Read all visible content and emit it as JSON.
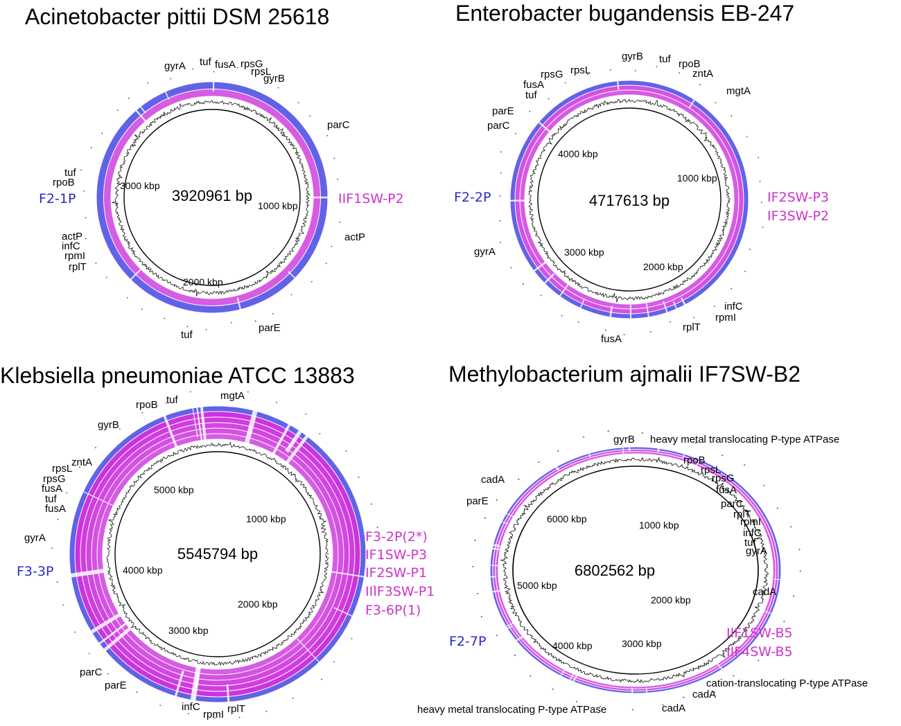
{
  "colors": {
    "reference_ring": "#5a5ae8",
    "comparison_ring": "#cc33dd",
    "reference_label": "#2a2ac8",
    "comparison_label": "#cc33cc"
  },
  "panels": [
    {
      "title": "Acinetobacter pittii DSM 25618",
      "genome_size": "3920961 bp",
      "kbp_labels": [
        "3000 kbp",
        "1000 kbp",
        "2000 kbp"
      ],
      "reference_strain": "F2-1P",
      "comparison_strains": [
        "IIF1SW-P2"
      ],
      "genes": [
        "gyrA",
        "tuf",
        "fusA",
        "rpsG",
        "rpsL",
        "gyrB",
        "parC",
        "tuf",
        "rpoB",
        "actP",
        "actP",
        "infC",
        "rpmI",
        "rplT",
        "tuf",
        "parE"
      ]
    },
    {
      "title": "Enterobacter bugandensis EB-247",
      "genome_size": "4717613 bp",
      "kbp_labels": [
        "4000 kbp",
        "1000 kbp",
        "3000 kbp",
        "2000 kbp"
      ],
      "reference_strain": "F2-2P",
      "comparison_strains": [
        "IF2SW-P3",
        "IF3SW-P2"
      ],
      "genes": [
        "gyrB",
        "tuf",
        "rpoB",
        "zntA",
        "rpsG",
        "rpsL",
        "fusA",
        "tuf",
        "mgtA",
        "parE",
        "parC",
        "gyrA",
        "infC",
        "rpmI",
        "rplT",
        "fusA"
      ]
    },
    {
      "title": "Klebsiella pneumoniae ATCC 13883",
      "genome_size": "5545794 bp",
      "kbp_labels": [
        "5000 kbp",
        "1000 kbp",
        "4000 kbp",
        "2000 kbp",
        "3000 kbp"
      ],
      "reference_strain": "F3-3P",
      "comparison_strains": [
        "F3-2P(2*)",
        "IF1SW-P3",
        "IF2SW-P1",
        "IIIF3SW-P1",
        "F3-6P(1)"
      ],
      "genes": [
        "rpoB",
        "tuf",
        "mgtA",
        "gyrB",
        "zntA",
        "rpsL",
        "rpsG",
        "fusA",
        "tuf",
        "fusA",
        "gyrA",
        "parC",
        "parE",
        "infC",
        "rpmI",
        "rplT"
      ]
    },
    {
      "title": "Methylobacterium ajmalii IF7SW-B2",
      "genome_size": "6802562 bp",
      "kbp_labels": [
        "6000 kbp",
        "1000 kbp",
        "5000 kbp",
        "2000 kbp",
        "4000 kbp",
        "3000 kbp"
      ],
      "reference_strain": "F2-7P",
      "comparison_strains": [
        "IIF1SW-B5",
        "IIF4SW-B5"
      ],
      "genes": [
        "gyrB",
        "heavy metal translocating P-type ATPase",
        "rpoB",
        "rpsL",
        "rpsG",
        "fusA",
        "cadA",
        "parE",
        "parC",
        "rplT",
        "rpmI",
        "infC",
        "tuf",
        "gyrA",
        "cadA",
        "cation-translocating P-type ATPase",
        "cadA",
        "cadA",
        "heavy metal translocating P-type ATPase"
      ]
    }
  ]
}
